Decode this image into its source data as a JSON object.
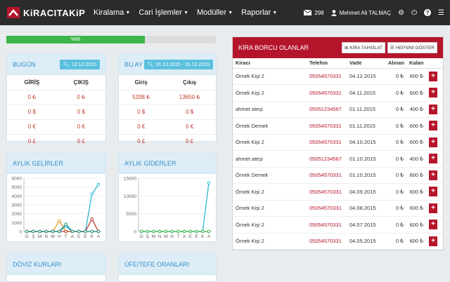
{
  "nav": {
    "brand": "KiRACITAKiP",
    "menu": [
      "Kiralama",
      "Cari İşlemler",
      "Modüller",
      "Raporlar"
    ],
    "messages_count": "298",
    "user_name": "Mehmet Ali TALMAÇ"
  },
  "progress": {
    "label": "%66",
    "value": 66
  },
  "today": {
    "title": "BUGÜN",
    "date": "12.12.2015",
    "headers": [
      "GİRİŞ",
      "ÇIKIŞ"
    ],
    "rows": [
      [
        "0 ₺",
        "0 ₺"
      ],
      [
        "0 $",
        "0 $"
      ],
      [
        "0 €",
        "0 €"
      ],
      [
        "0 £",
        "0 £"
      ]
    ]
  },
  "month": {
    "title": "BU AY",
    "date": "01.12.2015 - 31.12.2015",
    "headers": [
      "Giriş",
      "Çıkış"
    ],
    "rows": [
      [
        "5338 ₺",
        "13650 ₺"
      ],
      [
        "0 $",
        "0 $"
      ],
      [
        "0 €",
        "0 €"
      ],
      [
        "0 £",
        "0 £"
      ]
    ]
  },
  "income": {
    "title": "AYLIK GELİRLER"
  },
  "expense": {
    "title": "AYLIK GİDERLER"
  },
  "currency": {
    "title": "DÖVİZ KURLARI"
  },
  "ufe": {
    "title": "ÜFE/TEFE ORANLARI"
  },
  "chart_data": [
    {
      "type": "line",
      "title": "AYLIK GELİRLER",
      "categories": [
        "O",
        "Ş",
        "M",
        "N",
        "M",
        "H",
        "T",
        "A",
        "E",
        "E",
        "K",
        "A"
      ],
      "ylim": [
        0,
        6000
      ],
      "yticks": [
        0,
        1000,
        2000,
        3000,
        4000,
        5000,
        6000
      ],
      "series": [
        {
          "color": "#2bb7d6",
          "values": [
            0,
            0,
            0,
            0,
            0,
            0,
            600,
            0,
            0,
            0,
            4200,
            5300
          ]
        },
        {
          "color": "#e0a020",
          "values": [
            0,
            0,
            0,
            0,
            0,
            1200,
            0,
            0,
            0,
            0,
            0,
            0
          ]
        },
        {
          "color": "#c0392b",
          "values": [
            0,
            0,
            0,
            0,
            0,
            0,
            0,
            0,
            0,
            0,
            1400,
            0
          ]
        },
        {
          "color": "#1a8f85",
          "values": [
            0,
            0,
            0,
            0,
            0,
            0,
            800,
            0,
            0,
            0,
            0,
            0
          ]
        }
      ]
    },
    {
      "type": "line",
      "title": "AYLIK GİDERLER",
      "categories": [
        "O",
        "Ş",
        "M",
        "N",
        "M",
        "H",
        "T",
        "A",
        "E",
        "E",
        "K",
        "A"
      ],
      "ylim": [
        0,
        15000
      ],
      "yticks": [
        0,
        5000,
        10000,
        15000
      ],
      "series": [
        {
          "color": "#2bb7d6",
          "values": [
            0,
            0,
            0,
            0,
            0,
            0,
            0,
            0,
            0,
            0,
            0,
            13650
          ]
        },
        {
          "color": "#3cb54a",
          "values": [
            0,
            0,
            0,
            0,
            0,
            0,
            0,
            0,
            0,
            0,
            0,
            0
          ]
        }
      ]
    }
  ],
  "debtors": {
    "title": "KİRA BORCU OLANLAR",
    "btn_collect": "KİRA TAHSİLAT",
    "btn_show_all": "HEPSİNİ GÖSTER",
    "headers": [
      "Kiracı",
      "Telefon",
      "Vade",
      "Alınan",
      "Kalan"
    ],
    "rows": [
      [
        "Örnek Kişi 2",
        "05054570331",
        "04.12.2015",
        "0 ₺",
        "600 ₺"
      ],
      [
        "Örnek Kişi 2",
        "05054570331",
        "04.11.2015",
        "0 ₺",
        "600 ₺"
      ],
      [
        "ahmet ateşi",
        "05051234567",
        "01.11.2015",
        "0 ₺",
        "400 ₺"
      ],
      [
        "Örnek Demek",
        "05054570331",
        "01.11.2015",
        "0 ₺",
        "600 ₺"
      ],
      [
        "Örnek Kişi 2",
        "05054570331",
        "04.10.2015",
        "0 ₺",
        "600 ₺"
      ],
      [
        "ahmet ateşi",
        "05051234567",
        "01.10.2015",
        "0 ₺",
        "400 ₺"
      ],
      [
        "Örnek Demek",
        "05054570331",
        "01.10.2015",
        "0 ₺",
        "600 ₺"
      ],
      [
        "Örnek Kişi 2",
        "05054570331",
        "04.09.2015",
        "0 ₺",
        "600 ₺"
      ],
      [
        "Örnek Kişi 2",
        "05054570331",
        "04.08.2015",
        "0 ₺",
        "600 ₺"
      ],
      [
        "Örnek Kişi 2",
        "05054570331",
        "04.07.2015",
        "0 ₺",
        "600 ₺"
      ],
      [
        "Örnek Kişi 2",
        "05054570331",
        "04.05.2015",
        "0 ₺",
        "600 ₺"
      ]
    ]
  },
  "colors": {
    "brand_red": "#b5152b",
    "accent_blue": "#5bc0de",
    "navbar": "#2b2b2b",
    "progress_green": "#3cb54a"
  }
}
